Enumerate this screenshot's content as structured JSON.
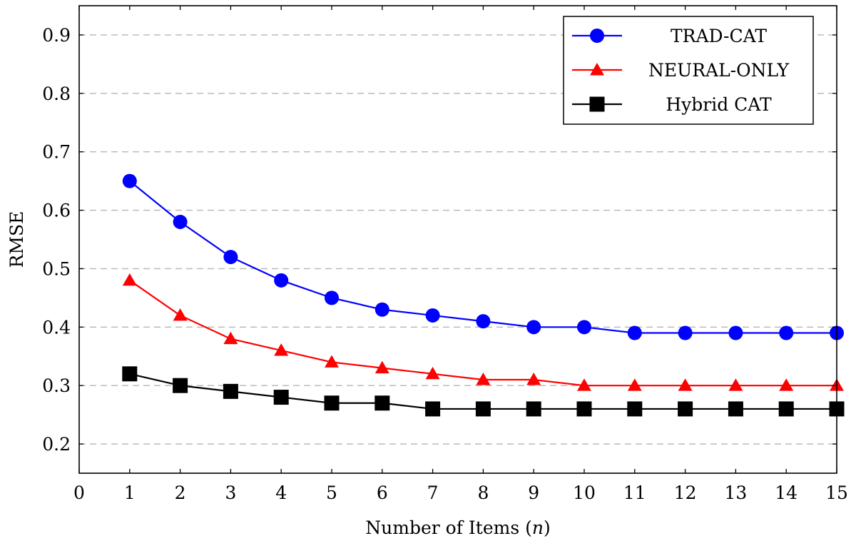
{
  "chart_data": {
    "type": "line",
    "title": "",
    "xlabel": "Number of Items (",
    "xlabel_var": "n",
    "xlabel_end": ")",
    "ylabel": "RMSE",
    "xlim": [
      0,
      15
    ],
    "ylim": [
      0.15,
      0.95
    ],
    "xticks": [
      0,
      1,
      2,
      3,
      4,
      5,
      6,
      7,
      8,
      9,
      10,
      11,
      12,
      13,
      14,
      15
    ],
    "xtick_labels": [
      "0",
      "1",
      "2",
      "3",
      "4",
      "5",
      "6",
      "7",
      "8",
      "9",
      "10",
      "11",
      "12",
      "13",
      "14",
      "15"
    ],
    "yticks": [
      0.2,
      0.3,
      0.4,
      0.5,
      0.6,
      0.7,
      0.8,
      0.9
    ],
    "ytick_labels": [
      "0.2",
      "0.3",
      "0.4",
      "0.5",
      "0.6",
      "0.7",
      "0.8",
      "0.9"
    ],
    "grid": "horizontal-dashed",
    "legend_position": "top-right",
    "x": [
      1,
      2,
      3,
      4,
      5,
      6,
      7,
      8,
      9,
      10,
      11,
      12,
      13,
      14,
      15
    ],
    "series": [
      {
        "name": "TRAD-CAT",
        "color": "#0000ff",
        "marker": "circle",
        "values": [
          0.65,
          0.58,
          0.52,
          0.48,
          0.45,
          0.43,
          0.42,
          0.41,
          0.4,
          0.4,
          0.39,
          0.39,
          0.39,
          0.39,
          0.39
        ]
      },
      {
        "name": "NEURAL-ONLY",
        "color": "#ff0000",
        "marker": "triangle",
        "values": [
          0.48,
          0.42,
          0.38,
          0.36,
          0.34,
          0.33,
          0.32,
          0.31,
          0.31,
          0.3,
          0.3,
          0.3,
          0.3,
          0.3,
          0.3
        ]
      },
      {
        "name": "Hybrid CAT",
        "color": "#000000",
        "marker": "square",
        "values": [
          0.32,
          0.3,
          0.29,
          0.28,
          0.27,
          0.27,
          0.26,
          0.26,
          0.26,
          0.26,
          0.26,
          0.26,
          0.26,
          0.26,
          0.26
        ]
      }
    ]
  }
}
